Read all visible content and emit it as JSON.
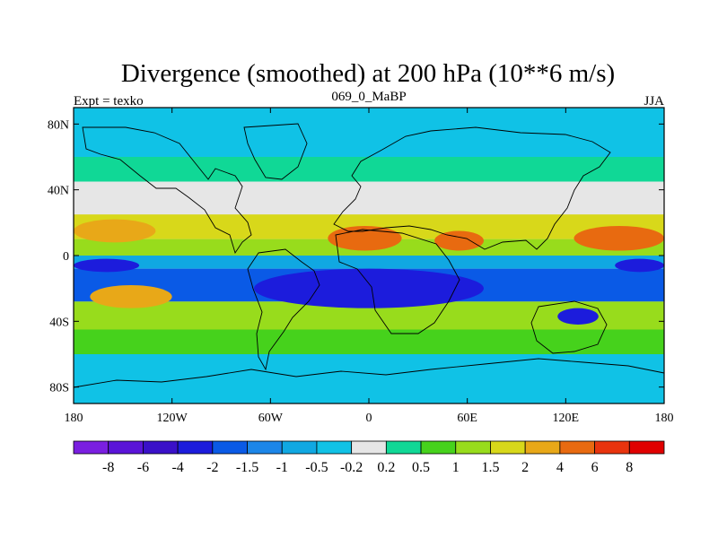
{
  "chart_data": {
    "type": "heatmap",
    "title": "Divergence (smoothed) at 200 hPa (10**6 m/s)",
    "left_label": "Expt = texko",
    "center_label": "069_0_MaBP",
    "right_label": "JJA",
    "x_ticks": [
      "180",
      "120W",
      "60W",
      "0",
      "60E",
      "120E",
      "180"
    ],
    "x_tick_values": [
      -180,
      -120,
      -60,
      0,
      60,
      120,
      180
    ],
    "y_ticks": [
      "80N",
      "40N",
      "0",
      "40S",
      "80S"
    ],
    "y_tick_values": [
      80,
      40,
      0,
      -40,
      -80
    ],
    "xlim": [
      -180,
      180
    ],
    "ylim": [
      -90,
      90
    ],
    "colorbar": {
      "labels": [
        "-8",
        "-6",
        "-4",
        "-2",
        "-1.5",
        "-1",
        "-0.5",
        "-0.2",
        "0.2",
        "0.5",
        "1",
        "1.5",
        "2",
        "4",
        "6",
        "8"
      ],
      "colors": [
        "#7a1fe0",
        "#5a14d8",
        "#3a10c8",
        "#1c1cdc",
        "#0a5ae6",
        "#1c86e8",
        "#10a8e2",
        "#10c2e6",
        "#e6e6e6",
        "#10d896",
        "#46d21c",
        "#98dc1c",
        "#d8d81a",
        "#e8a818",
        "#e86a10",
        "#e8340e",
        "#e00000"
      ]
    },
    "field_bands": [
      {
        "lat_min": 60,
        "lat_max": 90,
        "value": -0.5
      },
      {
        "lat_min": 45,
        "lat_max": 60,
        "value": 0.2
      },
      {
        "lat_min": 25,
        "lat_max": 45,
        "value": -0.2
      },
      {
        "lat_min": 10,
        "lat_max": 25,
        "value": 1.5
      },
      {
        "lat_min": 0,
        "lat_max": 10,
        "value": 1
      },
      {
        "lat_min": -8,
        "lat_max": 0,
        "value": -1
      },
      {
        "lat_min": -28,
        "lat_max": -8,
        "value": -2
      },
      {
        "lat_min": -45,
        "lat_max": -28,
        "value": 1
      },
      {
        "lat_min": -60,
        "lat_max": -45,
        "value": 0.5
      },
      {
        "lat_min": -90,
        "lat_max": -60,
        "value": -0.5
      }
    ],
    "field_blobs": [
      {
        "lon_min": -180,
        "lon_max": -130,
        "lat_min": 8,
        "lat_max": 22,
        "value": 2
      },
      {
        "lon_min": -25,
        "lon_max": 20,
        "lat_min": 3,
        "lat_max": 18,
        "value": 4
      },
      {
        "lon_min": 40,
        "lon_max": 70,
        "lat_min": 3,
        "lat_max": 15,
        "value": 4
      },
      {
        "lon_min": 125,
        "lon_max": 180,
        "lat_min": 3,
        "lat_max": 18,
        "value": 4
      },
      {
        "lon_min": -170,
        "lon_max": -120,
        "lat_min": -32,
        "lat_max": -18,
        "value": 2
      },
      {
        "lon_min": -70,
        "lon_max": 70,
        "lat_min": -32,
        "lat_max": -8,
        "value": -4
      },
      {
        "lon_min": 115,
        "lon_max": 140,
        "lat_min": -42,
        "lat_max": -32,
        "value": -4
      },
      {
        "lon_min": -180,
        "lon_max": -140,
        "lat_min": -10,
        "lat_max": -2,
        "value": -4
      },
      {
        "lon_min": 150,
        "lon_max": 180,
        "lat_min": -10,
        "lat_max": -2,
        "value": -4
      }
    ]
  }
}
